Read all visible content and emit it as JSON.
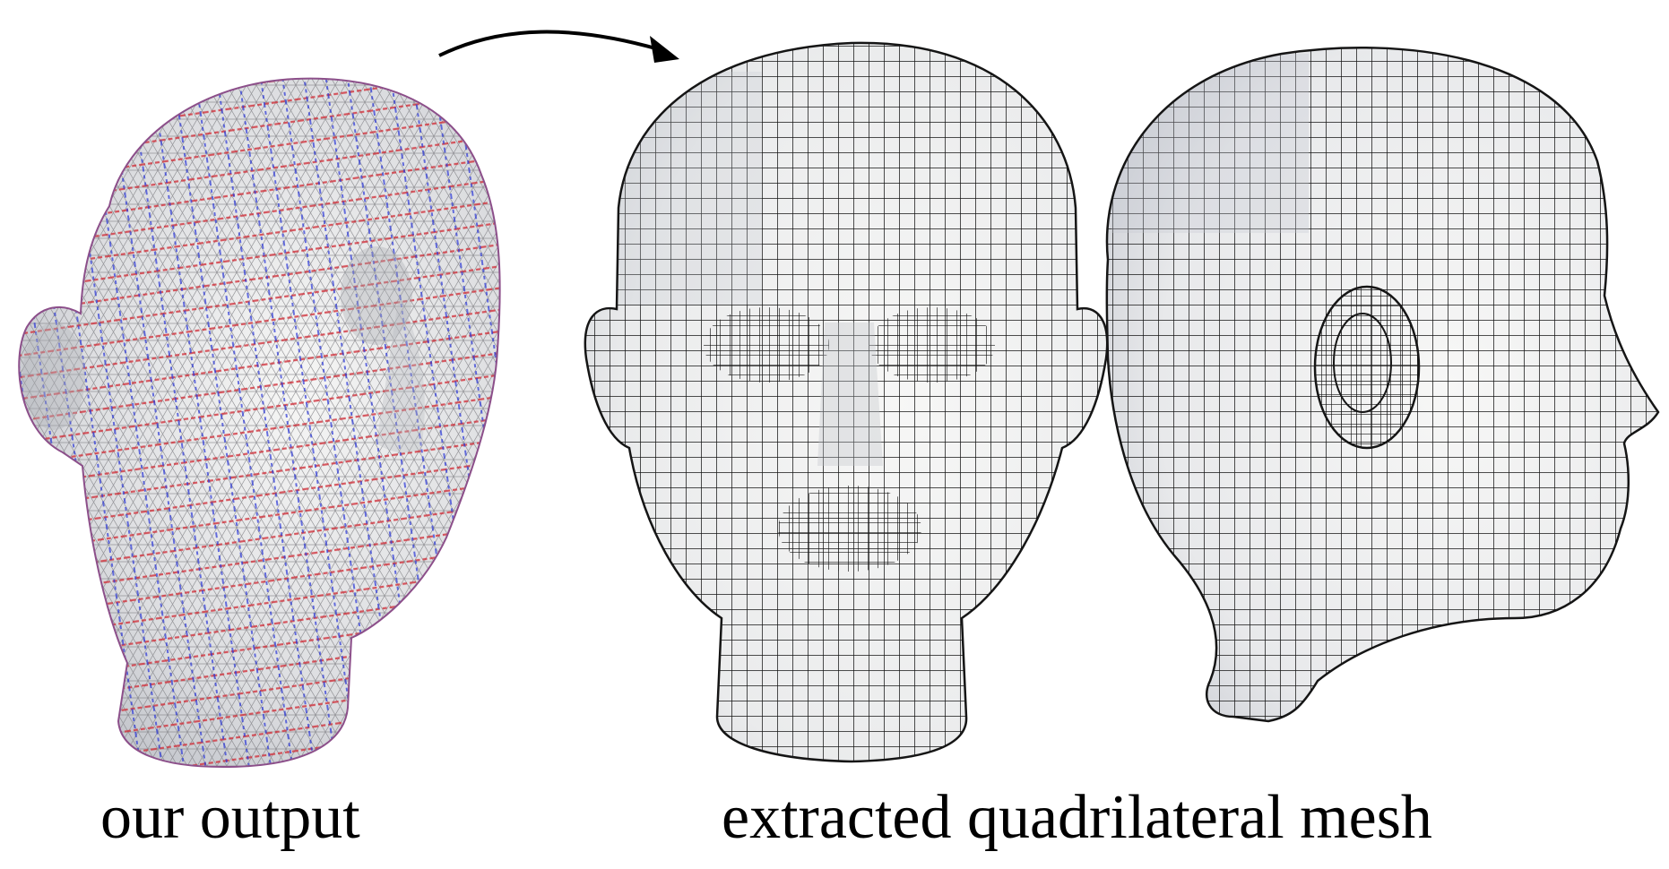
{
  "captions": {
    "left": "our output",
    "right": "extracted quadrilateral mesh"
  },
  "colors": {
    "background": "#ffffff",
    "surface_light": "#f4f4f3",
    "surface_shadow": "#c9ccd2",
    "tri_wire": "#7b7b80",
    "field_red": "#d0323c",
    "field_blue": "#2a36d6",
    "quad_wire": "#151515",
    "arrow": "#000000",
    "caption": "#000000"
  },
  "panels": [
    {
      "id": "our-output",
      "style": "triangle-mesh-with-crossfield",
      "view": "three-quarter"
    },
    {
      "id": "quad-front",
      "style": "quad-mesh",
      "view": "front"
    },
    {
      "id": "quad-side",
      "style": "quad-mesh",
      "view": "side"
    }
  ],
  "icons": [
    "curved-arrow-icon"
  ]
}
